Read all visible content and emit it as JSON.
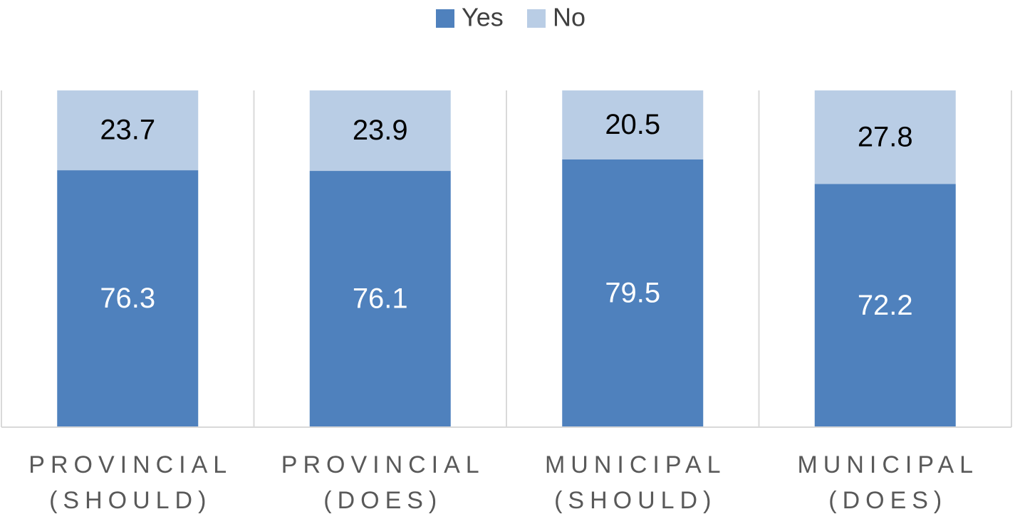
{
  "chart_data": {
    "type": "stacked_bar",
    "categories": [
      [
        "PROVINCIAL",
        "(SHOULD)"
      ],
      [
        "PROVINCIAL",
        "(DOES)"
      ],
      [
        "MUNICIPAL",
        "(SHOULD)"
      ],
      [
        "MUNICIPAL",
        "(DOES)"
      ]
    ],
    "series": [
      {
        "name": "Yes",
        "color": "#4f81bd",
        "values": [
          76.3,
          76.1,
          79.5,
          72.2
        ]
      },
      {
        "name": "No",
        "color": "#b9cde5",
        "values": [
          23.7,
          23.9,
          20.5,
          27.8
        ]
      }
    ],
    "ylim": [
      0,
      100
    ],
    "legend": "top"
  }
}
